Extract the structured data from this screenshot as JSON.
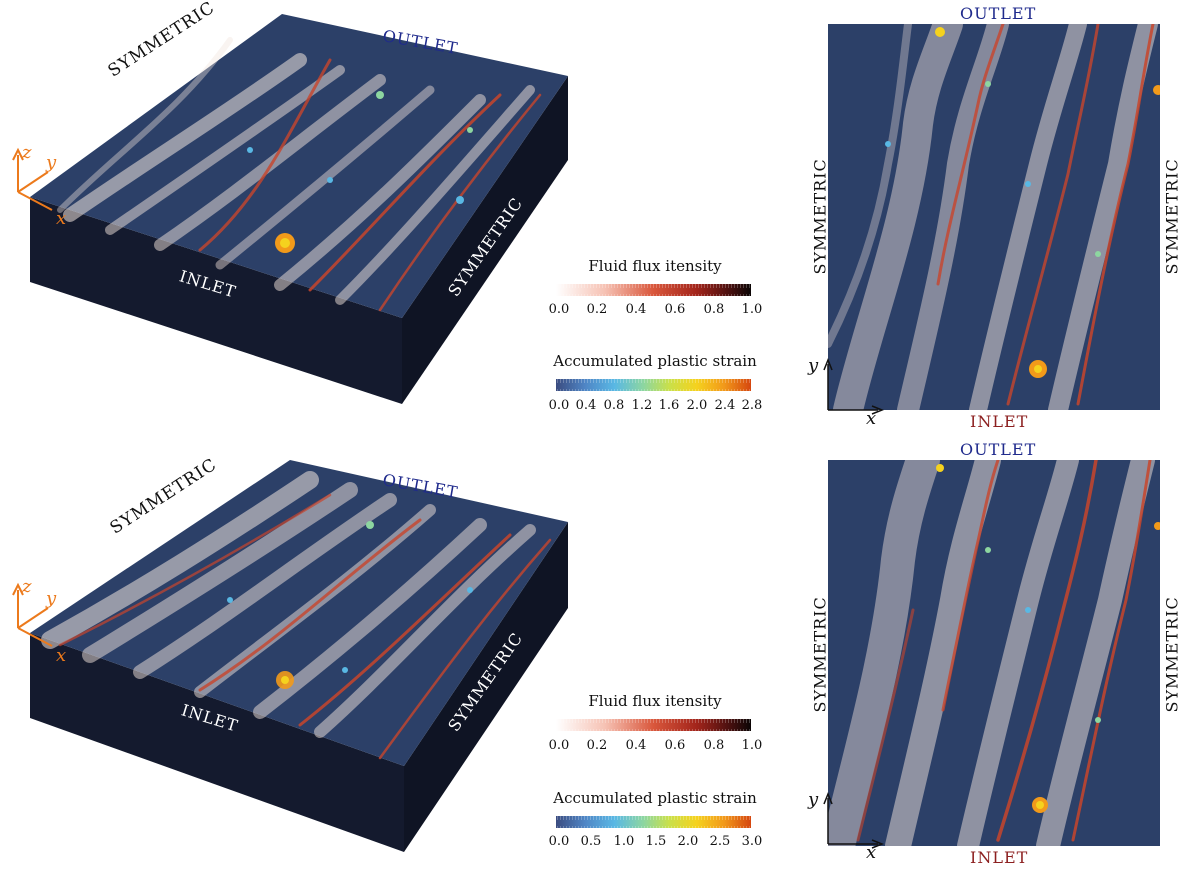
{
  "colors": {
    "field_bg": "#2c4068",
    "box_side": "#141a2e",
    "streak_light": "#f1e3dc",
    "streak_red": "#c8452c",
    "outlet_color": "#1f2a8c",
    "inlet_color_top": "#8c1f1f",
    "axis_orange": "#ec7a1c"
  },
  "panels": [
    {
      "box_labels": {
        "outlet": "OUTLET",
        "symmetric_left": "SYMMETRIC",
        "symmetric_right": "SYMMETRIC",
        "inlet": "INLET"
      },
      "box_axes": {
        "z": "z",
        "y": "y",
        "x": "x"
      },
      "flux_legend": {
        "title": "Fluid flux itensity",
        "ticks": [
          "0.0",
          "0.2",
          "0.4",
          "0.6",
          "0.8",
          "1.0"
        ],
        "range": [
          0.0,
          1.0
        ]
      },
      "strain_legend": {
        "title": "Accumulated plastic strain",
        "ticks": [
          "0.0",
          "0.4",
          "0.8",
          "1.2",
          "1.6",
          "2.0",
          "2.4",
          "2.8"
        ],
        "range": [
          0.0,
          2.8
        ]
      },
      "top_view": {
        "outlet": "OUTLET",
        "inlet": "INLET",
        "symmetric_left": "SYMMETRIC",
        "symmetric_right": "SYMMETRIC",
        "axis_y": "y",
        "axis_x": "x"
      }
    },
    {
      "box_labels": {
        "outlet": "OUTLET",
        "symmetric_left": "SYMMETRIC",
        "symmetric_right": "SYMMETRIC",
        "inlet": "INLET"
      },
      "box_axes": {
        "z": "z",
        "y": "y",
        "x": "x"
      },
      "flux_legend": {
        "title": "Fluid flux itensity",
        "ticks": [
          "0.0",
          "0.2",
          "0.4",
          "0.6",
          "0.8",
          "1.0"
        ],
        "range": [
          0.0,
          1.0
        ]
      },
      "strain_legend": {
        "title": "Accumulated plastic strain",
        "ticks": [
          "0.0",
          "0.5",
          "1.0",
          "1.5",
          "2.0",
          "2.5",
          "3.0"
        ],
        "range": [
          0.0,
          3.0
        ]
      },
      "top_view": {
        "outlet": "OUTLET",
        "inlet": "INLET",
        "symmetric_left": "SYMMETRIC",
        "symmetric_right": "SYMMETRIC",
        "axis_y": "y",
        "axis_x": "x"
      }
    }
  ]
}
